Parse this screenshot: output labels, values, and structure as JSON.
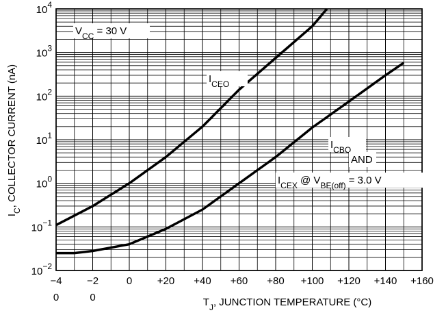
{
  "chart_data": {
    "type": "line",
    "log_y": true,
    "grid": true,
    "color": "#000000",
    "x_label": [
      {
        "text": "T"
      },
      {
        "text": "J",
        "sub": true
      },
      {
        "text": ", JUNCTION TEMPERATURE (°C)"
      }
    ],
    "y_label": [
      {
        "text": "I"
      },
      {
        "text": "C",
        "sub": true
      },
      {
        "text": ", COLLECTOR CURRENT (nA)"
      }
    ],
    "xlim": [
      -40,
      160
    ],
    "ylim": [
      0.01,
      10000
    ],
    "xticks": [
      {
        "value": -40,
        "label": [
          "−4",
          "0"
        ]
      },
      {
        "value": -20,
        "label": [
          "−2",
          "0"
        ]
      },
      0,
      {
        "value": 20,
        "label": "+20"
      },
      {
        "value": 40,
        "label": "+40"
      },
      {
        "value": 60,
        "label": "+60"
      },
      {
        "value": 80,
        "label": "+80"
      },
      {
        "value": 100,
        "label": "+100"
      },
      {
        "value": 120,
        "label": "+120"
      },
      {
        "value": 140,
        "label": "+140"
      },
      {
        "value": 160,
        "label": "+160"
      }
    ],
    "yticks": [
      {
        "value": 0.01,
        "label": {
          "base": "10",
          "exponent": "−2"
        }
      },
      {
        "value": 0.1,
        "label": {
          "base": "10",
          "exponent": "−1"
        }
      },
      {
        "value": 1,
        "label": {
          "base": "10",
          "exponent": "0"
        }
      },
      {
        "value": 10,
        "label": {
          "base": "10",
          "exponent": "1"
        }
      },
      {
        "value": 100,
        "label": {
          "base": "10",
          "exponent": "2"
        }
      },
      {
        "value": 1000,
        "label": {
          "base": "10",
          "exponent": "3"
        }
      },
      {
        "value": 10000,
        "label": {
          "base": "10",
          "exponent": "4"
        }
      }
    ],
    "series": [
      {
        "x": [
          -40,
          -20,
          0,
          20,
          40,
          60,
          80,
          100,
          108
        ],
        "values": [
          0.11,
          0.3,
          1,
          4,
          20,
          140,
          750,
          4000,
          10000
        ]
      },
      {
        "x": [
          -40,
          -30,
          -20,
          0,
          20,
          40,
          60,
          80,
          100,
          120,
          140,
          150
        ],
        "values": [
          0.025,
          0.025,
          0.028,
          0.04,
          0.09,
          0.25,
          1,
          4,
          19,
          75,
          300,
          580
        ]
      }
    ],
    "annotations": [
      [
        {
          "text": "V"
        },
        {
          "text": "CC",
          "sub": true
        },
        {
          "text": " = 30 V"
        }
      ],
      [
        {
          "text": "I"
        },
        {
          "text": "CEO",
          "sub": true
        }
      ],
      [
        {
          "text": "I"
        },
        {
          "text": "CBO",
          "sub": true
        }
      ],
      [
        {
          "text": "AND"
        }
      ],
      [
        {
          "text": "I"
        },
        {
          "text": "CEX",
          "sub": true
        },
        {
          "text": " @ V"
        },
        {
          "text": "BE(off)",
          "sub": true
        },
        {
          "text": " = 3.0 V"
        }
      ]
    ]
  }
}
